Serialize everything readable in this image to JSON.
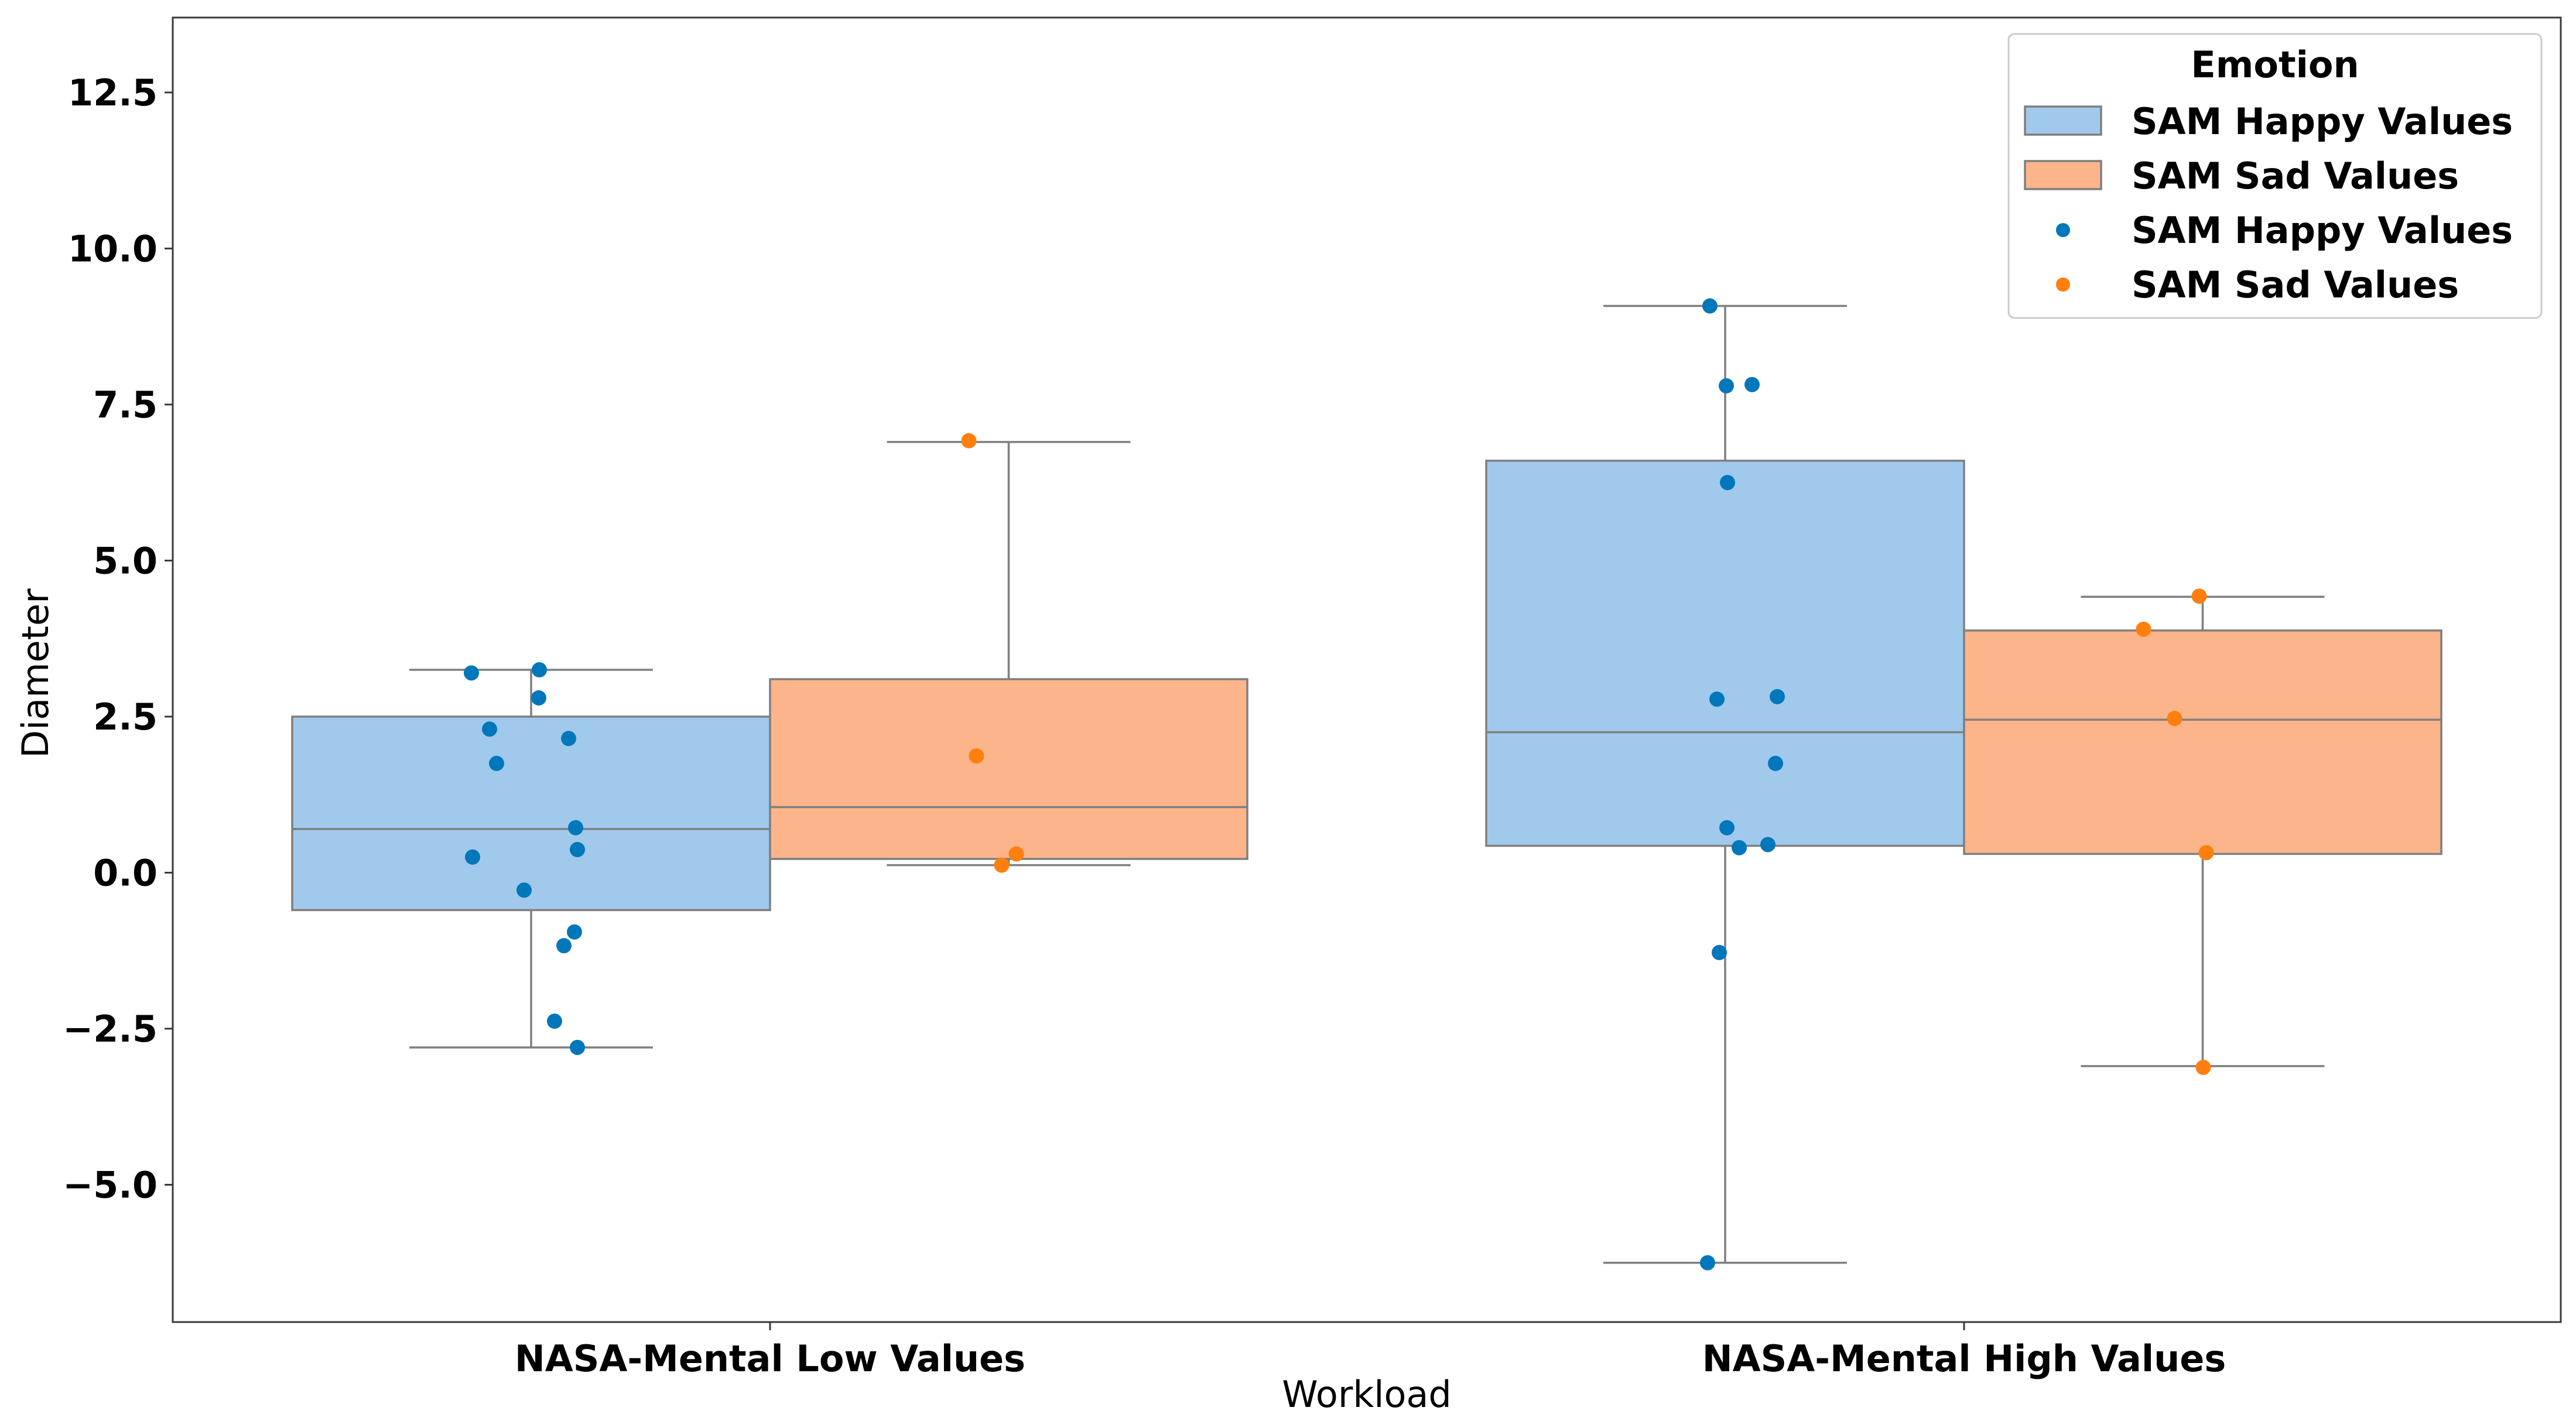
{
  "chart_data": {
    "type": "box",
    "xlabel": "Workload",
    "ylabel": "Diameter",
    "ylim": [
      -7.2,
      13.7
    ],
    "yticks": [
      {
        "value": -5.0,
        "label": "−5.0"
      },
      {
        "value": -2.5,
        "label": "−2.5"
      },
      {
        "value": 0.0,
        "label": "0.0"
      },
      {
        "value": 2.5,
        "label": "2.5"
      },
      {
        "value": 5.0,
        "label": "5.0"
      },
      {
        "value": 7.5,
        "label": "7.5"
      },
      {
        "value": 10.0,
        "label": "10.0"
      },
      {
        "value": 12.5,
        "label": "12.5"
      }
    ],
    "categories": [
      "NASA-Mental Low Values",
      "NASA-Mental High Values"
    ],
    "legend": {
      "title": "Emotion",
      "position": "top-right",
      "entries": [
        {
          "label": "SAM Happy Values",
          "kind": "box",
          "series": 0
        },
        {
          "label": "SAM Sad Values",
          "kind": "box",
          "series": 1
        },
        {
          "label": "SAM Happy Values",
          "kind": "point",
          "series": 0
        },
        {
          "label": "SAM Sad Values",
          "kind": "point",
          "series": 1
        }
      ]
    },
    "series": [
      {
        "name": "SAM Happy Values",
        "box_color": "#a1c9eb",
        "point_color": "#0077bb",
        "boxes": [
          {
            "whisker_low": -2.8,
            "q1": -0.6,
            "median": 0.7,
            "q3": 2.5,
            "whisker_high": 3.25
          },
          {
            "whisker_low": -6.25,
            "q1": 0.43,
            "median": 2.25,
            "q3": 6.6,
            "whisker_high": 9.08
          }
        ],
        "points": [
          [
            3.2,
            3.25,
            2.8,
            2.3,
            2.15,
            1.75,
            0.72,
            0.37,
            0.25,
            -0.28,
            -0.95,
            -1.17,
            -2.38,
            -2.8
          ],
          [
            9.08,
            7.82,
            7.8,
            6.25,
            2.82,
            2.78,
            1.75,
            0.72,
            0.45,
            0.4,
            -1.28,
            -6.25
          ]
        ]
      },
      {
        "name": "SAM Sad Values",
        "box_color": "#fcb48a",
        "point_color": "#ff7f0e",
        "boxes": [
          {
            "whisker_low": 0.12,
            "q1": 0.22,
            "median": 1.05,
            "q3": 3.1,
            "whisker_high": 6.9
          },
          {
            "whisker_low": -3.1,
            "q1": 0.3,
            "median": 2.45,
            "q3": 3.88,
            "whisker_high": 4.42
          }
        ],
        "points": [
          [
            6.92,
            1.87,
            0.3,
            0.12
          ],
          [
            4.43,
            3.9,
            2.47,
            0.32,
            -3.12
          ]
        ]
      }
    ]
  }
}
